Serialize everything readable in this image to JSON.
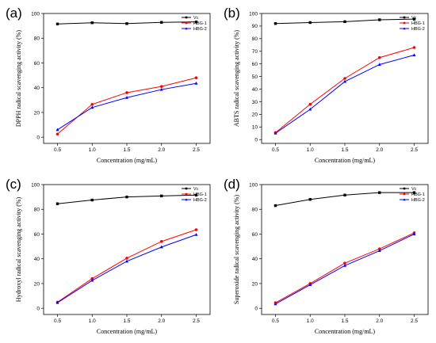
{
  "chart_data": [
    {
      "type": "line",
      "panel_label": "(a)",
      "xlabel": "Concentration (mg/mL)",
      "ylabel": "DPPH radical scavenging activity (%)",
      "x": [
        0.5,
        1.0,
        1.5,
        2.0,
        2.5
      ],
      "x_tick_labels": [
        "0.5",
        "1.0",
        "1.5",
        "2.0",
        "2.5"
      ],
      "xlim": [
        0.3,
        2.7
      ],
      "ylim": [
        -5,
        100
      ],
      "y_ticks": [
        0,
        20,
        40,
        60,
        80,
        100
      ],
      "legend_position": "top-right",
      "series": [
        {
          "name": "Vc",
          "color": "#000000",
          "values": [
            91.5,
            92.5,
            91.8,
            92.8,
            93.2
          ]
        },
        {
          "name": "HBG-1",
          "color": "#ff0000",
          "values": [
            2.5,
            26.5,
            36,
            41,
            48
          ]
        },
        {
          "name": "HBG-2",
          "color": "#0000ff",
          "values": [
            6,
            24,
            32,
            38.5,
            43.5
          ]
        }
      ]
    },
    {
      "type": "line",
      "panel_label": "(b)",
      "xlabel": "Concentration (mg/mL)",
      "ylabel": "ABTS radical scavenging activity (%)",
      "x": [
        0.5,
        1.0,
        1.5,
        2.0,
        2.5
      ],
      "x_tick_labels": [
        "0.5",
        "1.0",
        "1.5",
        "2.0",
        "2.5"
      ],
      "xlim": [
        0.3,
        2.7
      ],
      "ylim": [
        -3,
        100
      ],
      "y_ticks": [
        0,
        10,
        20,
        30,
        40,
        50,
        60,
        70,
        80,
        90,
        100
      ],
      "legend_position": "top-right",
      "series": [
        {
          "name": "Vc",
          "color": "#000000",
          "values": [
            92,
            92.8,
            93.5,
            95,
            95.5
          ]
        },
        {
          "name": "HBG-1",
          "color": "#ff0000",
          "values": [
            5.5,
            28,
            48.5,
            65,
            73
          ]
        },
        {
          "name": "HBG-2",
          "color": "#0000ff",
          "values": [
            5,
            24,
            46,
            59.5,
            67
          ]
        }
      ]
    },
    {
      "type": "line",
      "panel_label": "(c)",
      "xlabel": "Concentration (mg/mL)",
      "ylabel": "Hydroxyl radical scavenging activity (%)",
      "x": [
        0.5,
        1.0,
        1.5,
        2.0,
        2.5
      ],
      "x_tick_labels": [
        "0.5",
        "1.0",
        "1.5",
        "2.0",
        "2.5"
      ],
      "xlim": [
        0.3,
        2.7
      ],
      "ylim": [
        -5,
        100
      ],
      "y_ticks": [
        0,
        20,
        40,
        60,
        80,
        100
      ],
      "legend_position": "top-right",
      "series": [
        {
          "name": "Vc",
          "color": "#000000",
          "values": [
            84.5,
            87.5,
            90,
            90.8,
            91.5
          ]
        },
        {
          "name": "HBG-1",
          "color": "#ff0000",
          "values": [
            5,
            24,
            40.5,
            54,
            63.5
          ]
        },
        {
          "name": "HBG-2",
          "color": "#0000ff",
          "values": [
            4.5,
            22.5,
            38,
            49.5,
            59.5
          ]
        }
      ]
    },
    {
      "type": "line",
      "panel_label": "(d)",
      "xlabel": "Concentration (mg/mL)",
      "ylabel": "Superoxide radical scavenging activity (%)",
      "x": [
        0.5,
        1.0,
        1.5,
        2.0,
        2.5
      ],
      "x_tick_labels": [
        "0.5",
        "1.0",
        "1.5",
        "2.0",
        "2.5"
      ],
      "xlim": [
        0.3,
        2.7
      ],
      "ylim": [
        -5,
        100
      ],
      "y_ticks": [
        0,
        20,
        40,
        60,
        80,
        100
      ],
      "legend_position": "top-right",
      "series": [
        {
          "name": "Vc",
          "color": "#000000",
          "values": [
            83,
            88,
            91.5,
            93.5,
            93.5
          ]
        },
        {
          "name": "HBG-1",
          "color": "#ff0000",
          "values": [
            4.5,
            20,
            36.5,
            48,
            61
          ]
        },
        {
          "name": "HBG-2",
          "color": "#0000ff",
          "values": [
            3.5,
            19,
            34.5,
            46.5,
            60
          ]
        }
      ]
    }
  ]
}
